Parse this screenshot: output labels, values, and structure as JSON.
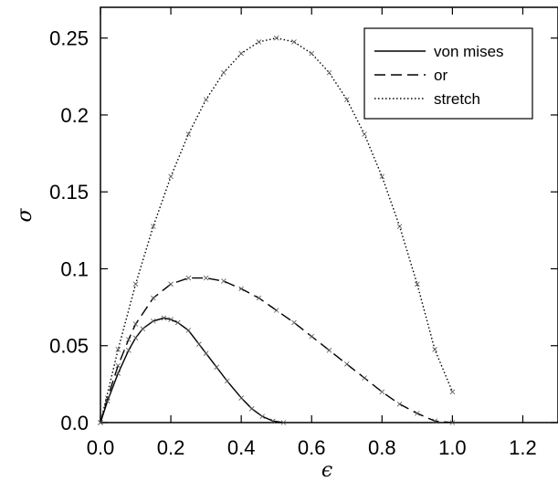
{
  "chart_data": {
    "type": "line",
    "title": "",
    "xlabel": "ϵ",
    "ylabel": "σ",
    "xlim": [
      0.0,
      1.3
    ],
    "ylim": [
      0.0,
      0.27
    ],
    "x_ticks": [
      "0.0",
      "0.2",
      "0.4",
      "0.6",
      "0.8",
      "1.0",
      "1.2"
    ],
    "y_ticks": [
      "0.0",
      "0.05",
      "0.1",
      "0.15",
      "0.2",
      "0.25"
    ],
    "grid": false,
    "legend_position": "top-right",
    "series": [
      {
        "name": "von mises",
        "style": "solid",
        "x": [
          0.0,
          0.02,
          0.05,
          0.08,
          0.1,
          0.12,
          0.15,
          0.18,
          0.2,
          0.22,
          0.25,
          0.28,
          0.3,
          0.33,
          0.36,
          0.4,
          0.43,
          0.46,
          0.49,
          0.52
        ],
        "y": [
          0.0,
          0.014,
          0.032,
          0.047,
          0.055,
          0.061,
          0.066,
          0.068,
          0.067,
          0.065,
          0.06,
          0.051,
          0.045,
          0.036,
          0.027,
          0.016,
          0.009,
          0.004,
          0.001,
          0.0
        ]
      },
      {
        "name": "or",
        "style": "dashed",
        "x": [
          0.0,
          0.02,
          0.05,
          0.08,
          0.1,
          0.15,
          0.2,
          0.25,
          0.3,
          0.35,
          0.4,
          0.45,
          0.5,
          0.55,
          0.6,
          0.65,
          0.7,
          0.75,
          0.8,
          0.85,
          0.9,
          0.95,
          1.0
        ],
        "y": [
          0.0,
          0.016,
          0.037,
          0.054,
          0.064,
          0.081,
          0.09,
          0.094,
          0.094,
          0.092,
          0.087,
          0.081,
          0.073,
          0.065,
          0.056,
          0.047,
          0.038,
          0.029,
          0.02,
          0.012,
          0.006,
          0.001,
          0.0
        ]
      },
      {
        "name": "stretch",
        "style": "dotted",
        "x": [
          0.0,
          0.05,
          0.1,
          0.15,
          0.2,
          0.25,
          0.3,
          0.35,
          0.4,
          0.45,
          0.5,
          0.55,
          0.6,
          0.65,
          0.7,
          0.75,
          0.8,
          0.85,
          0.9,
          0.95,
          1.0
        ],
        "y": [
          0.0,
          0.0475,
          0.09,
          0.1275,
          0.16,
          0.1875,
          0.21,
          0.2275,
          0.24,
          0.2475,
          0.25,
          0.2475,
          0.24,
          0.2275,
          0.21,
          0.1875,
          0.16,
          0.1275,
          0.09,
          0.0475,
          0.02
        ]
      }
    ]
  }
}
